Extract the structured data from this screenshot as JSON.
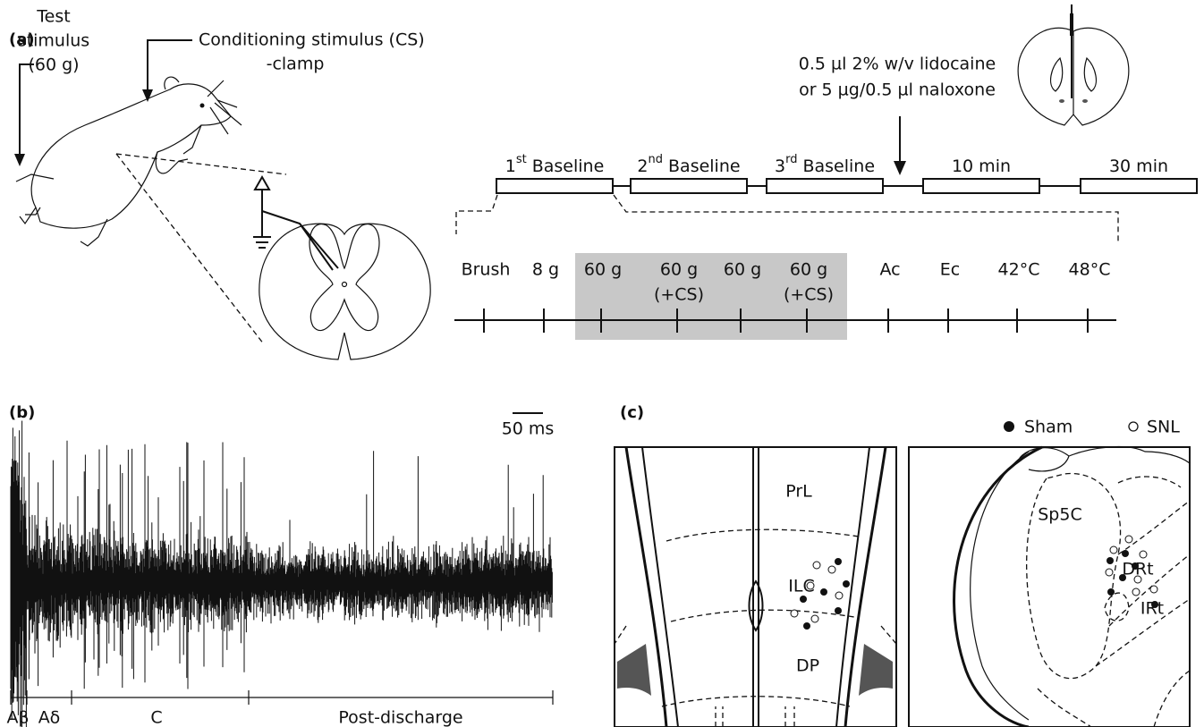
{
  "panel_a": {
    "label": "(a)",
    "test_stimulus": [
      "Test",
      "stimulus",
      "(60 g)"
    ],
    "conditioning_stimulus": [
      "Conditioning stimulus (CS)",
      "-clamp"
    ],
    "injection": [
      "0.5 µl 2% w/v lidocaine",
      "or 5 µg/0.5 µl naloxone"
    ],
    "sessions": [
      {
        "number": "1",
        "suffix": "st",
        "name": "Baseline"
      },
      {
        "number": "2",
        "suffix": "nd",
        "name": "Baseline"
      },
      {
        "number": "3",
        "suffix": "rd",
        "name": "Baseline"
      },
      {
        "name": "10 min"
      },
      {
        "name": "30 min"
      }
    ],
    "tests": [
      [
        "Brush"
      ],
      [
        "8 g"
      ],
      [
        "60 g"
      ],
      [
        "60 g",
        "(+CS)"
      ],
      [
        "60 g"
      ],
      [
        "60 g",
        "(+CS)"
      ],
      [
        "Ac"
      ],
      [
        "Ec"
      ],
      [
        "42°C"
      ],
      [
        "48°C"
      ]
    ]
  },
  "panel_b": {
    "label": "(b)",
    "scale_bar": "50 ms",
    "phases": [
      "Aβ",
      "Aδ",
      "C",
      "Post-discharge"
    ]
  },
  "panel_c": {
    "label": "(c)",
    "legend": [
      "Sham",
      "SNL"
    ],
    "regions_left": [
      "PrL",
      "ILC",
      "DP"
    ],
    "regions_right": [
      "Sp5C",
      "DRt",
      "IRt"
    ]
  }
}
